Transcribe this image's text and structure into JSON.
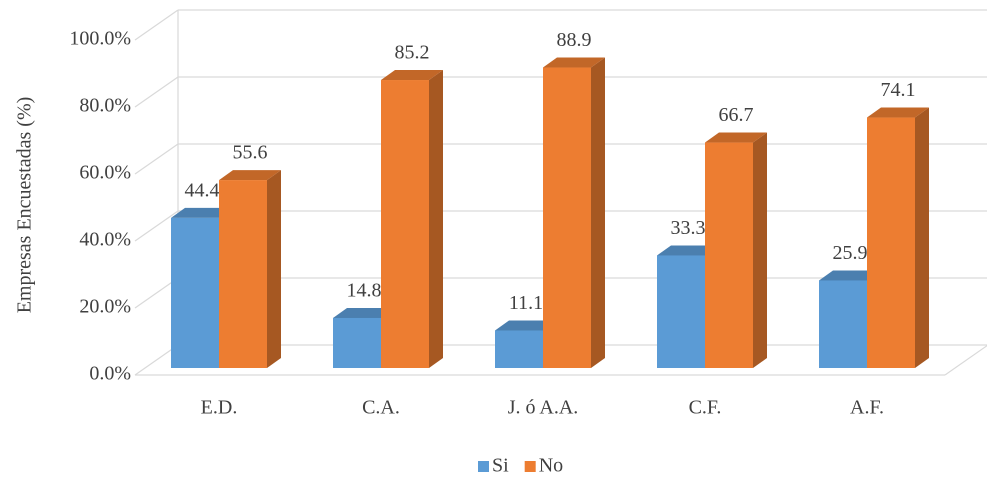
{
  "chart_data": {
    "type": "bar3d",
    "y_label": "Empresas Encuestadas (%)",
    "categories": [
      "E.D.",
      "C.A.",
      "J. ó A.A.",
      "C.F.",
      "A.F."
    ],
    "series": [
      {
        "name": "Si",
        "color": "#5b9bd5",
        "values": [
          44.4,
          14.8,
          11.1,
          33.3,
          25.9
        ]
      },
      {
        "name": "No",
        "color": "#ed7d31",
        "values": [
          55.6,
          85.2,
          88.9,
          66.7,
          74.1
        ]
      }
    ],
    "ylim": [
      0,
      100
    ],
    "yticks": [
      {
        "value": 0,
        "label": "0.0%"
      },
      {
        "value": 20,
        "label": "20.0%"
      },
      {
        "value": 40,
        "label": "40.0%"
      },
      {
        "value": 60,
        "label": "60.0%"
      },
      {
        "value": 80,
        "label": "80.0%"
      },
      {
        "value": 100,
        "label": "100.0%"
      }
    ],
    "grid": true,
    "legend": "bottom"
  }
}
